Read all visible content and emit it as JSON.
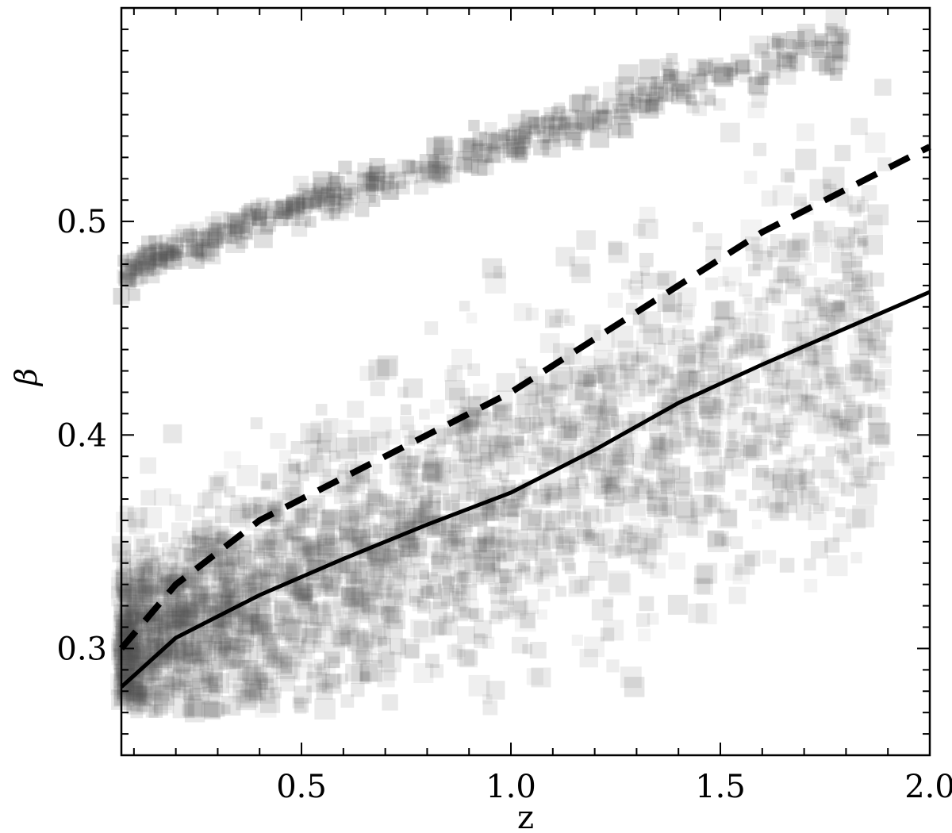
{
  "chart_data": {
    "type": "scatter",
    "title": "",
    "xlabel": "z",
    "ylabel": "β",
    "xlim": [
      0.07,
      2.0
    ],
    "ylim": [
      0.25,
      0.6
    ],
    "grid": false,
    "legend": "none",
    "x_ticks": [
      {
        "value": 0.5,
        "label": "0.5"
      },
      {
        "value": 1.0,
        "label": "1.0"
      },
      {
        "value": 1.5,
        "label": "1.5"
      },
      {
        "value": 2.0,
        "label": "2.0"
      }
    ],
    "y_ticks": [
      {
        "value": 0.3,
        "label": "0.3"
      },
      {
        "value": 0.4,
        "label": "0.4"
      },
      {
        "value": 0.5,
        "label": "0.5"
      }
    ],
    "colors": {
      "points": "#505050",
      "lines": "#000000",
      "axes": "#000000"
    },
    "series": [
      {
        "kind": "density-points",
        "description_regions": [
          {
            "z_range": [
              0.07,
              1.9
            ],
            "beta_center_start": 0.295,
            "beta_center_end": 0.445,
            "beta_spread_start": 0.025,
            "beta_spread_end": 0.05,
            "density": "high"
          },
          {
            "z_range": [
              0.07,
              1.8
            ],
            "beta_center_start": 0.475,
            "beta_center_end": 0.585,
            "beta_spread_start": 0.004,
            "beta_spread_end": 0.006,
            "density": "ridge"
          }
        ]
      },
      {
        "kind": "line",
        "style": "dashed",
        "x": [
          0.07,
          0.2,
          0.4,
          0.6,
          0.8,
          1.0,
          1.2,
          1.4,
          1.6,
          1.8,
          2.0
        ],
        "y": [
          0.3,
          0.33,
          0.36,
          0.38,
          0.4,
          0.42,
          0.445,
          0.47,
          0.495,
          0.515,
          0.535
        ]
      },
      {
        "kind": "line",
        "style": "solid",
        "x": [
          0.07,
          0.2,
          0.4,
          0.6,
          0.8,
          1.0,
          1.2,
          1.4,
          1.6,
          1.8,
          2.0
        ],
        "y": [
          0.282,
          0.305,
          0.325,
          0.342,
          0.358,
          0.373,
          0.393,
          0.415,
          0.433,
          0.45,
          0.467
        ]
      }
    ]
  }
}
